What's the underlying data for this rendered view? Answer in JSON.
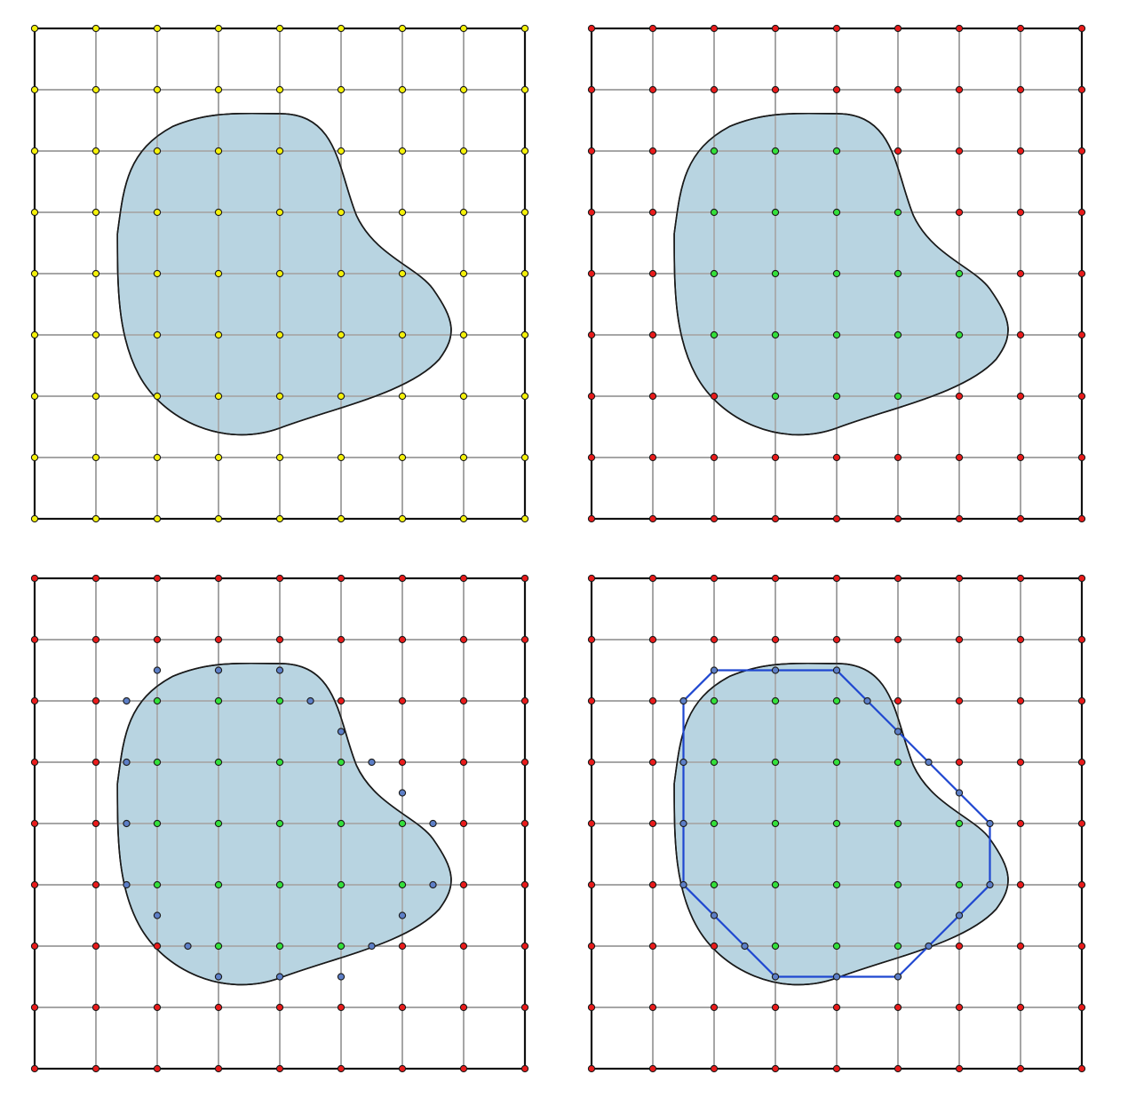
{
  "figure": {
    "description_none": "",
    "panels": [
      {
        "id": "panel-1",
        "step": "grid-vertices"
      },
      {
        "id": "panel-2",
        "step": "inside-outside-classification"
      },
      {
        "id": "panel-3",
        "step": "edge-intersection-points"
      },
      {
        "id": "panel-4",
        "step": "polygon-approximation"
      }
    ]
  },
  "colors": {
    "background": "#ffffff",
    "grid_line": "#a6a6a6",
    "border": "#111111",
    "shape_fill": "#b8d4e1",
    "shape_stroke": "#1a1a1a",
    "vertex_default": "#f5f20a",
    "vertex_outside": "#ea1b1b",
    "vertex_inside": "#33e03a",
    "edge_point": "#5d7fc7",
    "polygon": "#1f47d0",
    "dot_stroke": "#1a1a1a"
  },
  "grid": {
    "columns": 8,
    "rows": 8
  },
  "inside_vertices": [
    [
      2,
      2
    ],
    [
      3,
      2
    ],
    [
      4,
      2
    ],
    [
      2,
      3
    ],
    [
      3,
      3
    ],
    [
      4,
      3
    ],
    [
      5,
      3
    ],
    [
      2,
      4
    ],
    [
      3,
      4
    ],
    [
      4,
      4
    ],
    [
      5,
      4
    ],
    [
      6,
      4
    ],
    [
      2,
      5
    ],
    [
      3,
      5
    ],
    [
      4,
      5
    ],
    [
      5,
      5
    ],
    [
      6,
      5
    ],
    [
      3,
      6
    ],
    [
      4,
      6
    ],
    [
      5,
      6
    ]
  ],
  "edge_points": [
    [
      2,
      1.5
    ],
    [
      3,
      1.5
    ],
    [
      4,
      1.5
    ],
    [
      1.5,
      2
    ],
    [
      4.5,
      2
    ],
    [
      5,
      2.5
    ],
    [
      1.5,
      3
    ],
    [
      5.5,
      3
    ],
    [
      6,
      3.5
    ],
    [
      1.5,
      4
    ],
    [
      6.5,
      4
    ],
    [
      1.5,
      5
    ],
    [
      6.5,
      5
    ],
    [
      2,
      5.5
    ],
    [
      6,
      5.5
    ],
    [
      2.5,
      6
    ],
    [
      5.5,
      6
    ],
    [
      3,
      6.5
    ],
    [
      4,
      6.5
    ],
    [
      5,
      6.5
    ]
  ],
  "polygon_order": [
    [
      2,
      1.5
    ],
    [
      3,
      1.5
    ],
    [
      4,
      1.5
    ],
    [
      4.5,
      2
    ],
    [
      5,
      2.5
    ],
    [
      5.5,
      3
    ],
    [
      6,
      3.5
    ],
    [
      6.5,
      4
    ],
    [
      6.5,
      5
    ],
    [
      6,
      5.5
    ],
    [
      5.5,
      6
    ],
    [
      5,
      6.5
    ],
    [
      4,
      6.5
    ],
    [
      3,
      6.5
    ],
    [
      2.5,
      6
    ],
    [
      2,
      5.5
    ],
    [
      1.5,
      5
    ],
    [
      1.5,
      4
    ],
    [
      1.5,
      3
    ],
    [
      1.5,
      2
    ]
  ]
}
